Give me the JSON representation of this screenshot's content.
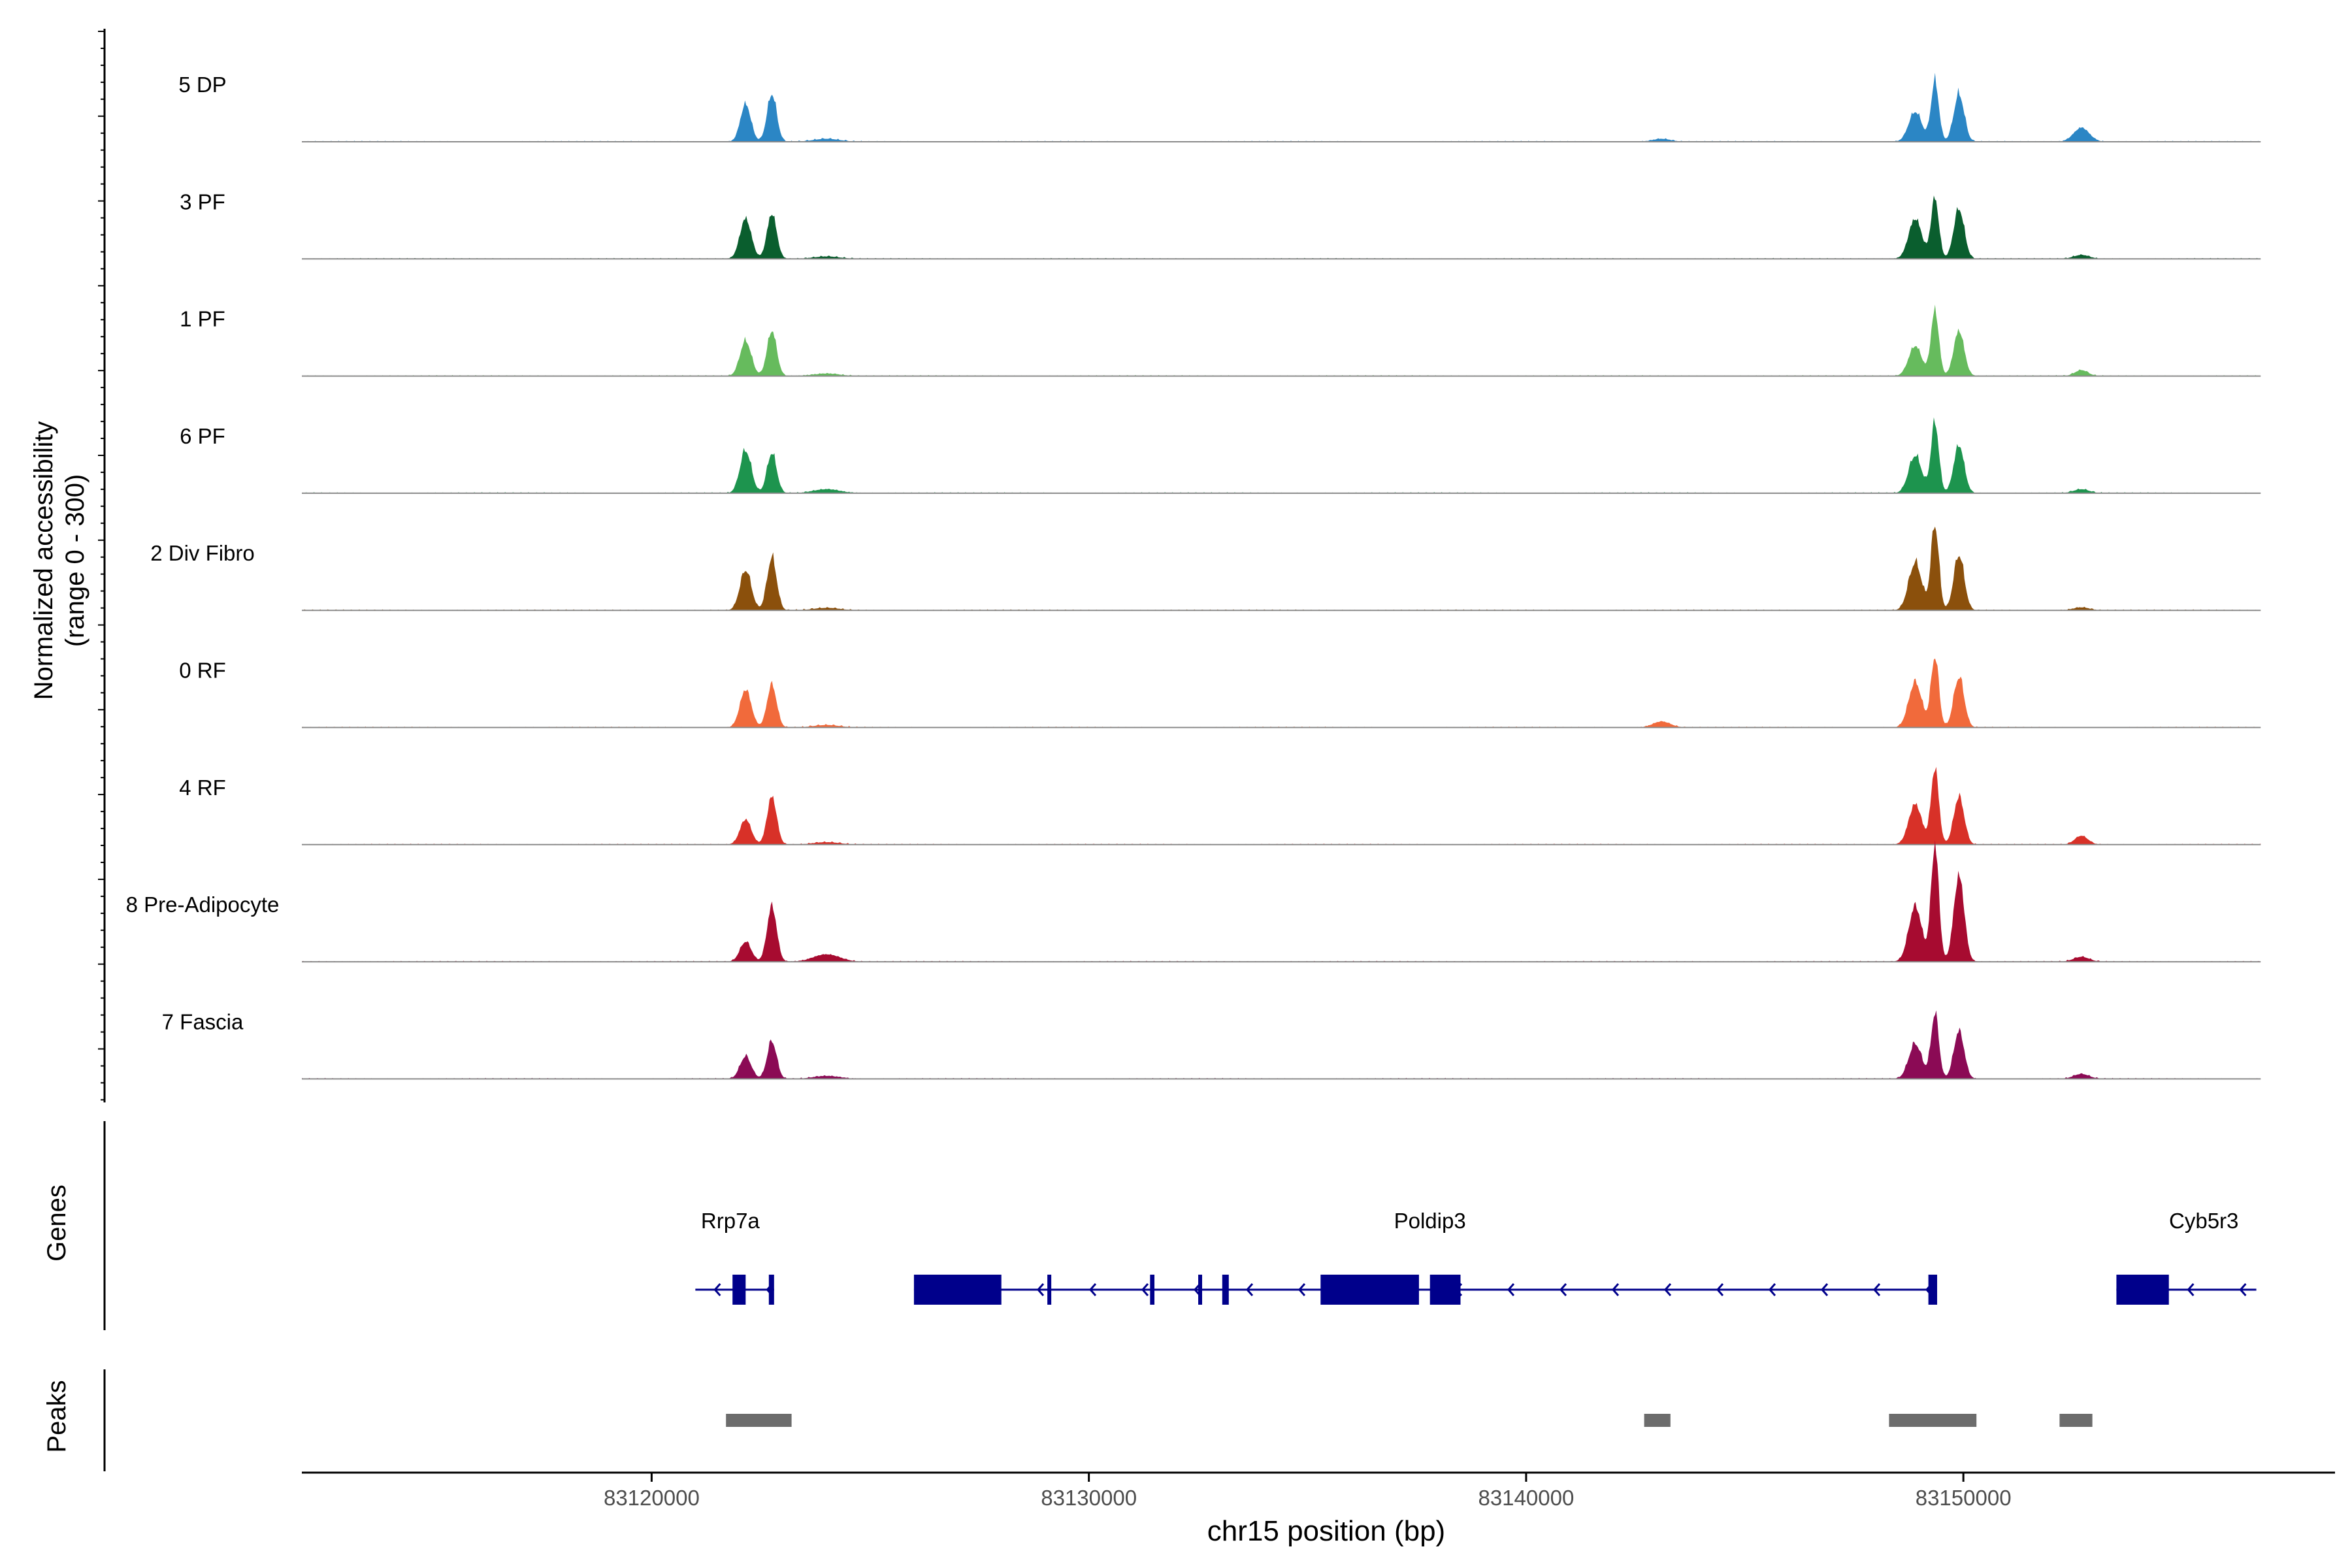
{
  "chart_data": {
    "type": "area",
    "title": "",
    "ylabel_line1": "Normalized accessibility",
    "ylabel_line2": "(range 0 - 300)",
    "xlabel": "chr15 position (bp)",
    "xlim": [
      83112000,
      83158500
    ],
    "ylim": [
      0,
      300
    ],
    "xticks": [
      {
        "value": 83120000,
        "label": "83120000"
      },
      {
        "value": 83130000,
        "label": "83130000"
      },
      {
        "value": 83140000,
        "label": "83140000"
      },
      {
        "value": 83150000,
        "label": "83150000"
      }
    ],
    "data_start": 83112000,
    "data_end": 83156800,
    "series": [
      {
        "name": "5 DP",
        "color": "#2b86c5",
        "peaks": [
          [
            83122150,
            75,
            120
          ],
          [
            83122750,
            95,
            110
          ],
          [
            83124000,
            6,
            300
          ],
          [
            83143100,
            6,
            200
          ],
          [
            83148900,
            60,
            150
          ],
          [
            83149350,
            120,
            90
          ],
          [
            83149900,
            95,
            120
          ],
          [
            83152700,
            28,
            180
          ]
        ]
      },
      {
        "name": "3 PF",
        "color": "#0a5e2e",
        "peaks": [
          [
            83122150,
            80,
            130
          ],
          [
            83122750,
            90,
            110
          ],
          [
            83124000,
            5,
            300
          ],
          [
            83148900,
            80,
            150
          ],
          [
            83149350,
            120,
            90
          ],
          [
            83149900,
            100,
            120
          ],
          [
            83152700,
            8,
            180
          ]
        ]
      },
      {
        "name": "1 PF",
        "color": "#66bb5d",
        "peaks": [
          [
            83122150,
            70,
            130
          ],
          [
            83122750,
            90,
            110
          ],
          [
            83124000,
            5,
            300
          ],
          [
            83148900,
            60,
            150
          ],
          [
            83149350,
            130,
            90
          ],
          [
            83149900,
            90,
            120
          ],
          [
            83152700,
            12,
            150
          ]
        ]
      },
      {
        "name": "6 PF",
        "color": "#1d944e",
        "peaks": [
          [
            83122150,
            85,
            130
          ],
          [
            83122750,
            80,
            110
          ],
          [
            83124000,
            8,
            300
          ],
          [
            83148900,
            75,
            150
          ],
          [
            83149350,
            140,
            90
          ],
          [
            83149900,
            95,
            120
          ],
          [
            83152700,
            8,
            180
          ]
        ]
      },
      {
        "name": "2 Div Fibro",
        "color": "#8b500c",
        "peaks": [
          [
            83122150,
            80,
            130
          ],
          [
            83122750,
            105,
            110
          ],
          [
            83124000,
            5,
            300
          ],
          [
            83148900,
            95,
            150
          ],
          [
            83149350,
            170,
            90
          ],
          [
            83149900,
            110,
            120
          ],
          [
            83152700,
            6,
            180
          ]
        ]
      },
      {
        "name": "0 RF",
        "color": "#f16a3b",
        "peaks": [
          [
            83122150,
            75,
            130
          ],
          [
            83122750,
            85,
            110
          ],
          [
            83124000,
            5,
            300
          ],
          [
            83143100,
            12,
            200
          ],
          [
            83148900,
            90,
            150
          ],
          [
            83149350,
            140,
            90
          ],
          [
            83149900,
            100,
            120
          ]
        ]
      },
      {
        "name": "4 RF",
        "color": "#d83128",
        "peaks": [
          [
            83122150,
            50,
            130
          ],
          [
            83122750,
            95,
            110
          ],
          [
            83124000,
            5,
            300
          ],
          [
            83148900,
            80,
            150
          ],
          [
            83149350,
            150,
            90
          ],
          [
            83149900,
            95,
            120
          ],
          [
            83152700,
            18,
            150
          ]
        ]
      },
      {
        "name": "8 Pre-Adipocyte",
        "color": "#a70b30",
        "peaks": [
          [
            83122150,
            40,
            130
          ],
          [
            83122750,
            110,
            110
          ],
          [
            83124000,
            15,
            300
          ],
          [
            83148900,
            110,
            150
          ],
          [
            83149350,
            230,
            90
          ],
          [
            83149900,
            170,
            120
          ],
          [
            83152700,
            10,
            180
          ]
        ]
      },
      {
        "name": "7 Fascia",
        "color": "#8b0a55",
        "peaks": [
          [
            83122150,
            45,
            130
          ],
          [
            83122750,
            75,
            110
          ],
          [
            83124000,
            6,
            300
          ],
          [
            83148900,
            70,
            150
          ],
          [
            83149350,
            130,
            90
          ],
          [
            83149900,
            95,
            120
          ],
          [
            83152700,
            10,
            180
          ]
        ]
      }
    ],
    "genes": {
      "axis_label": "Genes",
      "color": "#00008b",
      "items": [
        {
          "name": "Rrp7a",
          "label_x": 83121800,
          "start": 83121000,
          "end": 83122800,
          "strand": "-",
          "exons": [
            [
              83121850,
              83122150
            ],
            [
              83122680,
              83122800
            ]
          ]
        },
        {
          "name": "Poldip3",
          "label_x": 83137800,
          "start": 83126000,
          "end": 83149400,
          "strand": "-",
          "exons": [
            [
              83126000,
              83128000
            ],
            [
              83129050,
              83129090
            ],
            [
              83131400,
              83131500
            ],
            [
              83132500,
              83132560
            ],
            [
              83133050,
              83133200
            ],
            [
              83135300,
              83137550
            ],
            [
              83137800,
              83138500
            ],
            [
              83149200,
              83149400
            ]
          ]
        },
        {
          "name": "Cyb5r3",
          "label_x": 83155500,
          "start": 83153500,
          "end": 83156700,
          "strand": "-",
          "exons": [
            [
              83153500,
              83154700
            ]
          ]
        }
      ]
    },
    "peaks_track": {
      "axis_label": "Peaks",
      "color": "#6c6c6c",
      "regions": [
        [
          83121700,
          83123200
        ],
        [
          83142700,
          83143300
        ],
        [
          83148300,
          83150300
        ],
        [
          83152200,
          83152950
        ]
      ]
    }
  }
}
